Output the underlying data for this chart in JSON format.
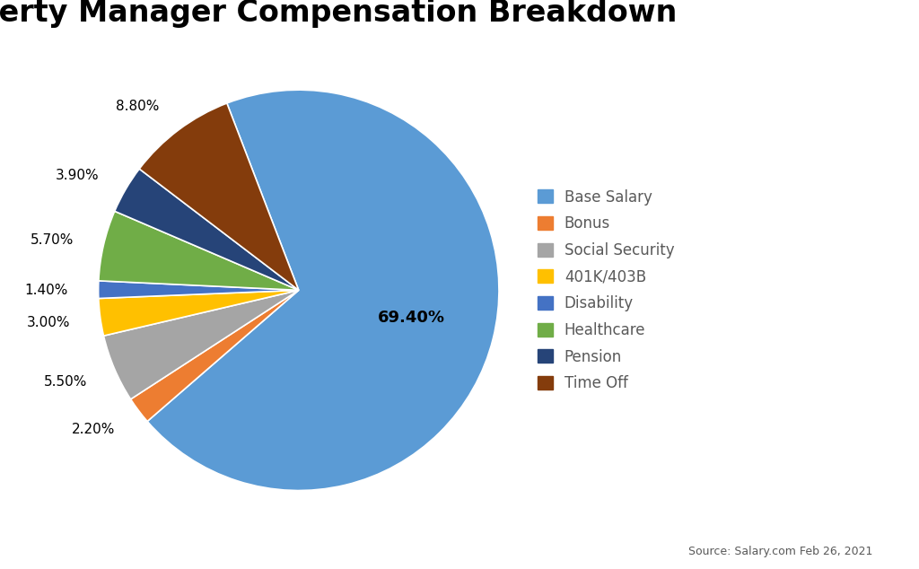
{
  "title": "Property Manager Compensation Breakdown",
  "labels": [
    "Base Salary",
    "Bonus",
    "Social Security",
    "401K/403B",
    "Disability",
    "Healthcare",
    "Pension",
    "Time Off"
  ],
  "values": [
    69.4,
    2.2,
    5.5,
    3.0,
    1.4,
    5.7,
    3.9,
    8.8
  ],
  "colors": [
    "#5B9BD5",
    "#ED7D31",
    "#A5A5A5",
    "#FFC000",
    "#4472C4",
    "#70AD47",
    "#264478",
    "#843C0C"
  ],
  "pct_labels": [
    "69.40%",
    "2.20%",
    "5.50%",
    "3.00%",
    "1.40%",
    "5.70%",
    "3.90%",
    "8.80%"
  ],
  "source_text": "Source: Salary.com Feb 26, 2021",
  "title_fontsize": 24,
  "legend_fontsize": 12,
  "pct_fontsize": 11,
  "background_color": "#FFFFFF",
  "startangle": 111
}
